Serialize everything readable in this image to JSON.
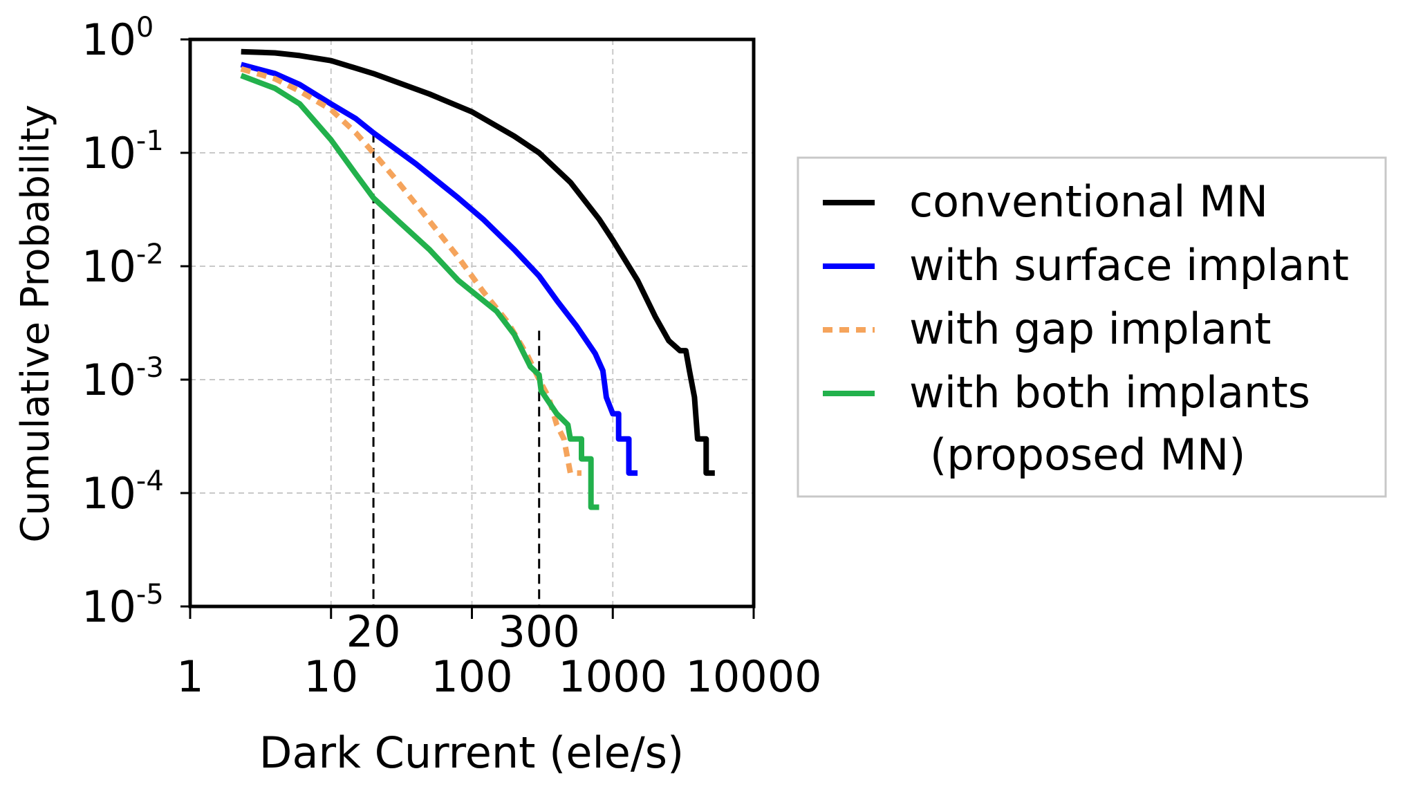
{
  "chart_data": {
    "type": "line",
    "xlabel": "Dark Current (ele/s)",
    "ylabel": "Cumulative Probability",
    "x_scale": "log",
    "y_scale": "log",
    "xlim": [
      1,
      10000
    ],
    "ylim": [
      1e-05,
      1
    ],
    "x_ticks": [
      {
        "value": 1,
        "label": "1"
      },
      {
        "value": 10,
        "label": "10"
      },
      {
        "value": 100,
        "label": "100"
      },
      {
        "value": 1000,
        "label": "1000"
      },
      {
        "value": 10000,
        "label": "10000"
      }
    ],
    "y_ticks": [
      {
        "value": 1,
        "base": "10",
        "exp": "0"
      },
      {
        "value": 0.1,
        "base": "10",
        "exp": "-1"
      },
      {
        "value": 0.01,
        "base": "10",
        "exp": "-2"
      },
      {
        "value": 0.001,
        "base": "10",
        "exp": "-3"
      },
      {
        "value": 0.0001,
        "base": "10",
        "exp": "-4"
      },
      {
        "value": 1e-05,
        "base": "10",
        "exp": "-5"
      }
    ],
    "grid": true,
    "legend_position": "right",
    "reference_lines": [
      {
        "x": 20,
        "y_top": 0.15,
        "label": "20"
      },
      {
        "x": 300,
        "y_top": 0.0027,
        "label": "300"
      }
    ],
    "series": [
      {
        "name": "conventional MN",
        "color": "#000000",
        "style": "solid",
        "points": [
          [
            2.3,
            0.78
          ],
          [
            4,
            0.76
          ],
          [
            6,
            0.72
          ],
          [
            10,
            0.65
          ],
          [
            20,
            0.5
          ],
          [
            50,
            0.33
          ],
          [
            100,
            0.23
          ],
          [
            200,
            0.14
          ],
          [
            300,
            0.1
          ],
          [
            500,
            0.055
          ],
          [
            800,
            0.026
          ],
          [
            1000,
            0.017
          ],
          [
            1500,
            0.0075
          ],
          [
            2000,
            0.0036
          ],
          [
            2500,
            0.0022
          ],
          [
            3000,
            0.0018
          ],
          [
            3300,
            0.0018
          ],
          [
            3500,
            0.0012
          ],
          [
            3800,
            0.0007
          ],
          [
            4000,
            0.0003
          ],
          [
            4600,
            0.0003
          ],
          [
            4600,
            0.00015
          ],
          [
            5300,
            0.00015
          ]
        ]
      },
      {
        "name": "with surface implant",
        "color": "#0000ff",
        "style": "solid",
        "points": [
          [
            2.3,
            0.6
          ],
          [
            4,
            0.5
          ],
          [
            6,
            0.4
          ],
          [
            10,
            0.27
          ],
          [
            15,
            0.2
          ],
          [
            20,
            0.15
          ],
          [
            40,
            0.08
          ],
          [
            80,
            0.04
          ],
          [
            120,
            0.026
          ],
          [
            200,
            0.014
          ],
          [
            300,
            0.0082
          ],
          [
            400,
            0.005
          ],
          [
            550,
            0.003
          ],
          [
            750,
            0.0017
          ],
          [
            850,
            0.0012
          ],
          [
            900,
            0.0007
          ],
          [
            1000,
            0.0005
          ],
          [
            1100,
            0.0005
          ],
          [
            1100,
            0.0003
          ],
          [
            1300,
            0.0003
          ],
          [
            1300,
            0.00015
          ],
          [
            1500,
            0.00015
          ]
        ]
      },
      {
        "name": "with gap implant",
        "color": "#f5a45c",
        "style": "dotted",
        "points": [
          [
            2.3,
            0.55
          ],
          [
            4,
            0.45
          ],
          [
            6,
            0.35
          ],
          [
            10,
            0.24
          ],
          [
            15,
            0.15
          ],
          [
            20,
            0.1
          ],
          [
            30,
            0.055
          ],
          [
            50,
            0.025
          ],
          [
            80,
            0.012
          ],
          [
            120,
            0.006
          ],
          [
            180,
            0.0032
          ],
          [
            250,
            0.0016
          ],
          [
            300,
            0.001
          ],
          [
            350,
            0.0007
          ],
          [
            400,
            0.0004
          ],
          [
            450,
            0.0003
          ],
          [
            500,
            0.00015
          ],
          [
            600,
            0.00015
          ]
        ]
      },
      {
        "name": "with both implants (proposed MN)",
        "name_lines": [
          "with both implants",
          "(proposed MN)"
        ],
        "color": "#22b14c",
        "style": "solid",
        "points": [
          [
            2.3,
            0.48
          ],
          [
            4,
            0.37
          ],
          [
            6,
            0.27
          ],
          [
            10,
            0.13
          ],
          [
            15,
            0.065
          ],
          [
            20,
            0.04
          ],
          [
            30,
            0.025
          ],
          [
            50,
            0.014
          ],
          [
            80,
            0.0075
          ],
          [
            120,
            0.005
          ],
          [
            150,
            0.004
          ],
          [
            200,
            0.0025
          ],
          [
            260,
            0.0013
          ],
          [
            300,
            0.0011
          ],
          [
            310,
            0.0008
          ],
          [
            400,
            0.0005
          ],
          [
            480,
            0.0004
          ],
          [
            500,
            0.0003
          ],
          [
            600,
            0.0003
          ],
          [
            600,
            0.0002
          ],
          [
            700,
            0.0002
          ],
          [
            700,
            7.5e-05
          ],
          [
            800,
            7.5e-05
          ]
        ]
      }
    ]
  }
}
